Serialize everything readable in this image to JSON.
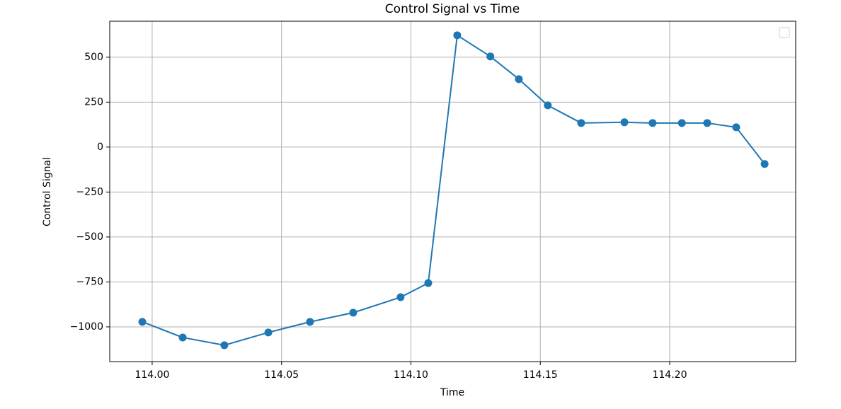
{
  "chart_data": {
    "type": "line",
    "title": "Control Signal vs Time",
    "x_label": "Time",
    "y_label": "Control Signal",
    "x": [
      113.9962,
      114.0118,
      114.0279,
      114.0449,
      114.061,
      114.0777,
      114.096,
      114.1067,
      114.1179,
      114.1307,
      114.1417,
      114.1529,
      114.1658,
      114.1825,
      114.1934,
      114.2047,
      114.2145,
      114.2257,
      114.2367
    ],
    "values": [
      -972,
      -1059,
      -1102,
      -1031,
      -972,
      -921,
      -835,
      -756,
      622,
      504,
      378,
      232,
      134,
      138,
      134,
      134,
      134,
      110,
      -94
    ],
    "color": "#1f77b4",
    "marker": "circle",
    "xlim": [
      113.9836,
      114.2487
    ],
    "ylim": [
      -1193,
      700
    ],
    "xticks": [
      {
        "value": 114.0,
        "label": "114.00"
      },
      {
        "value": 114.05,
        "label": "114.05"
      },
      {
        "value": 114.1,
        "label": "114.10"
      },
      {
        "value": 114.15,
        "label": "114.15"
      },
      {
        "value": 114.2,
        "label": "114.20"
      }
    ],
    "yticks": [
      {
        "value": -1000,
        "label": "−1000"
      },
      {
        "value": -750,
        "label": "−750"
      },
      {
        "value": -500,
        "label": "−500"
      },
      {
        "value": -250,
        "label": "−250"
      },
      0,
      250,
      500
    ],
    "grid": true,
    "legend": "upper right"
  }
}
